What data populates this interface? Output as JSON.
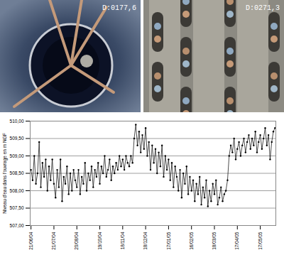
{
  "photos": [
    {
      "label": "D:0177,6"
    },
    {
      "label": "D:0271,3"
    }
  ],
  "chart_data": {
    "type": "line",
    "y_label": "Niveau d'eau dans l'ouvrage en m NGF",
    "color": "#000000",
    "marker": "dot",
    "grid": true,
    "ylim": [
      507,
      510
    ],
    "yticks": [
      {
        "value": 507,
        "label": "507,00"
      },
      {
        "value": 507.5,
        "label": "507,50"
      },
      {
        "value": 508,
        "label": "508,00"
      },
      {
        "value": 508.5,
        "label": "508,50"
      },
      {
        "value": 509,
        "label": "509,00"
      },
      {
        "value": 509.5,
        "label": "509,50"
      },
      {
        "value": 510,
        "label": "510,00"
      }
    ],
    "categories": [
      "21/06/04",
      null,
      null,
      null,
      null,
      null,
      null,
      null,
      null,
      null,
      null,
      null,
      null,
      null,
      "21/07/04",
      null,
      null,
      null,
      null,
      null,
      null,
      null,
      null,
      null,
      null,
      null,
      null,
      null,
      "20/08/04",
      null,
      null,
      null,
      null,
      null,
      null,
      null,
      null,
      null,
      null,
      null,
      null,
      null,
      "19/10/04",
      null,
      null,
      null,
      null,
      null,
      null,
      null,
      null,
      null,
      null,
      null,
      null,
      null,
      "18/11/04",
      null,
      null,
      null,
      null,
      null,
      null,
      null,
      null,
      null,
      null,
      null,
      null,
      null,
      "18/12/04",
      null,
      null,
      null,
      null,
      null,
      null,
      null,
      null,
      null,
      null,
      null,
      null,
      null,
      "17/01/05",
      null,
      null,
      null,
      null,
      null,
      null,
      null,
      null,
      null,
      null,
      null,
      null,
      null,
      "16/02/05",
      null,
      null,
      null,
      null,
      null,
      null,
      null,
      null,
      null,
      null,
      null,
      null,
      null,
      "18/03/05",
      null,
      null,
      null,
      null,
      null,
      null,
      null,
      null,
      null,
      null,
      null,
      null,
      null,
      "17/04/05",
      null,
      null,
      null,
      null,
      null,
      null,
      null,
      null,
      null,
      null,
      null,
      null,
      null,
      "17/05/05",
      null,
      null,
      null,
      null,
      null,
      null,
      null,
      null,
      null
    ],
    "values": [
      508.6,
      508.3,
      509.0,
      508.2,
      508.5,
      509.4,
      508.1,
      508.8,
      508.4,
      508.9,
      508.0,
      508.7,
      508.3,
      508.9,
      508.2,
      507.8,
      508.6,
      508.1,
      508.9,
      507.7,
      508.4,
      508.2,
      508.7,
      507.9,
      508.5,
      508.0,
      508.6,
      508.3,
      508.1,
      508.6,
      507.9,
      508.4,
      508.2,
      508.8,
      508.0,
      508.5,
      508.3,
      508.7,
      508.1,
      508.6,
      508.4,
      508.8,
      508.2,
      508.7,
      508.5,
      509.0,
      508.4,
      508.6,
      508.9,
      508.3,
      508.7,
      508.5,
      508.8,
      508.6,
      509.0,
      508.7,
      508.9,
      508.6,
      509.0,
      508.8,
      508.7,
      509.0,
      508.8,
      509.5,
      509.9,
      509.3,
      509.7,
      509.1,
      509.6,
      509.2,
      509.8,
      509.0,
      509.4,
      508.6,
      509.3,
      508.8,
      509.2,
      508.5,
      509.1,
      508.7,
      509.3,
      508.4,
      509.0,
      508.6,
      508.9,
      508.3,
      508.8,
      508.1,
      508.7,
      508.4,
      508.0,
      508.6,
      507.8,
      508.5,
      508.2,
      508.7,
      507.9,
      508.4,
      508.0,
      508.3,
      507.7,
      508.2,
      507.9,
      508.4,
      507.6,
      508.1,
      507.8,
      508.3,
      507.55,
      508.0,
      507.7,
      508.2,
      507.9,
      508.3,
      507.6,
      507.8,
      508.1,
      507.7,
      507.9,
      508.0,
      508.3,
      509.0,
      509.3,
      509.1,
      509.5,
      508.9,
      509.2,
      509.4,
      509.0,
      509.3,
      509.5,
      509.1,
      509.4,
      509.6,
      509.2,
      509.5,
      509.3,
      509.7,
      509.1,
      509.4,
      509.6,
      509.2,
      509.5,
      509.8,
      509.3,
      509.6,
      508.9,
      509.4,
      509.7,
      509.8
    ]
  }
}
